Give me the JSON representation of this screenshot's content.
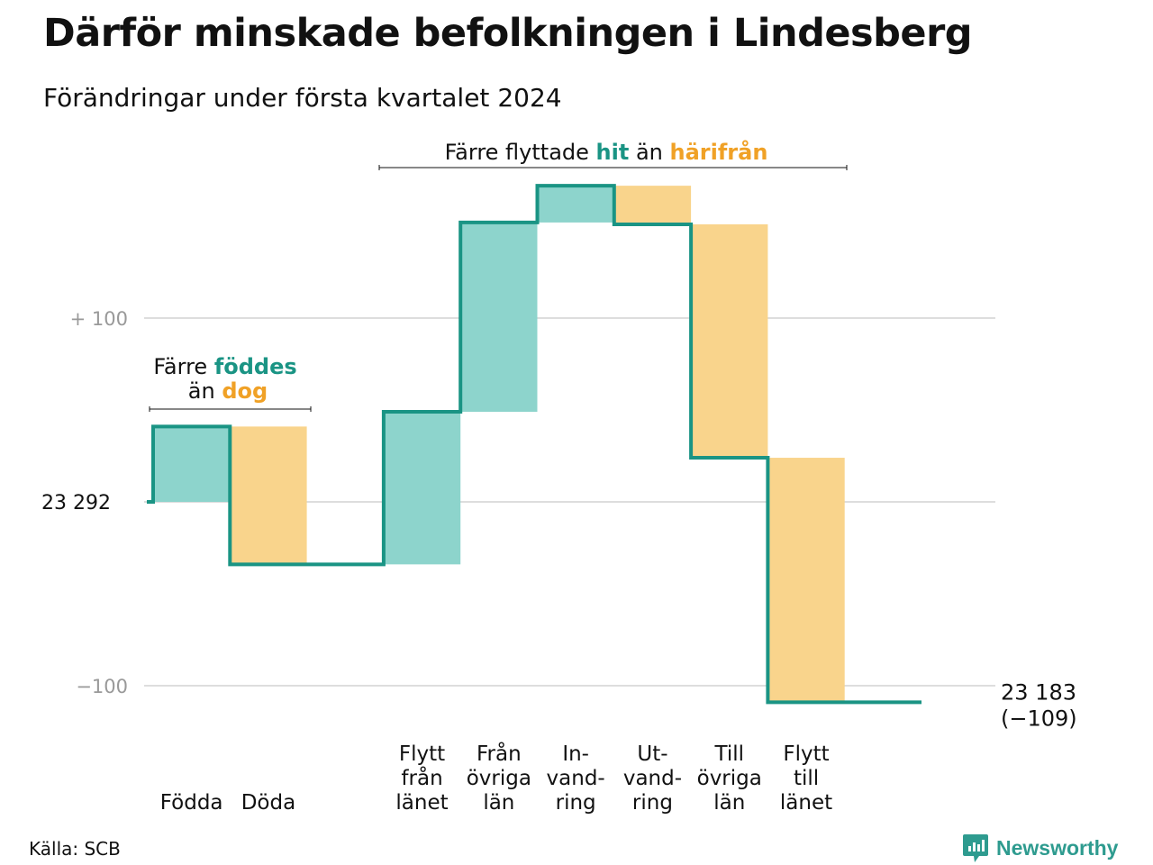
{
  "title": "Därför minskade befolkningen i Lindesberg",
  "subtitle": "Förändringar under första kvartalet 2024",
  "source": "Källa: SCB",
  "brand": "Newsworthy",
  "colors": {
    "increase": "#8dd4cc",
    "decrease": "#f9d48c",
    "line": "#1a9484",
    "teal_text": "#1a9484",
    "orange_text": "#f0a126",
    "grid": "#dddddd",
    "axis_label": "#999999"
  },
  "annotations": {
    "births_deaths": {
      "line1_pre": "Färre ",
      "line1_hl": "föddes",
      "line2_pre": "än ",
      "line2_hl": "dog"
    },
    "migration": {
      "pre": "Färre flyttade ",
      "hl1": "hit",
      "mid": " än ",
      "hl2": "härifrån"
    }
  },
  "chart_data": {
    "type": "waterfall",
    "start_value": 23292,
    "start_label": "23  292",
    "end_value": 23183,
    "end_label": "23 183",
    "end_change_label": "(−109)",
    "y_ticks": [
      {
        "value": 100,
        "label": "+  100"
      },
      {
        "value": 0,
        "label": ""
      },
      {
        "value": -100,
        "label": "−100"
      }
    ],
    "ylim": [
      -110,
      172
    ],
    "steps": [
      {
        "category": "Födda",
        "label_lines": [
          "Födda"
        ],
        "value": 41
      },
      {
        "category": "Döda",
        "label_lines": [
          "Döda"
        ],
        "value": -75
      },
      {
        "category": "",
        "label_lines": [],
        "value": 0
      },
      {
        "category": "Flytt från länet",
        "label_lines": [
          "Flytt",
          "från",
          "länet"
        ],
        "value": 83
      },
      {
        "category": "Från övriga län",
        "label_lines": [
          "Från",
          "övriga",
          "län"
        ],
        "value": 103
      },
      {
        "category": "In-vandring",
        "label_lines": [
          "In-",
          "vand-",
          "ring"
        ],
        "value": 20
      },
      {
        "category": "Ut-vandring",
        "label_lines": [
          "Ut-",
          "vand-",
          "ring"
        ],
        "value": -21
      },
      {
        "category": "Till övriga län",
        "label_lines": [
          "Till",
          "övriga",
          "län"
        ],
        "value": -127
      },
      {
        "category": "Flytt till länet",
        "label_lines": [
          "Flytt",
          "till",
          "länet"
        ],
        "value": -133
      },
      {
        "category": "",
        "label_lines": [],
        "value": 0
      }
    ]
  }
}
